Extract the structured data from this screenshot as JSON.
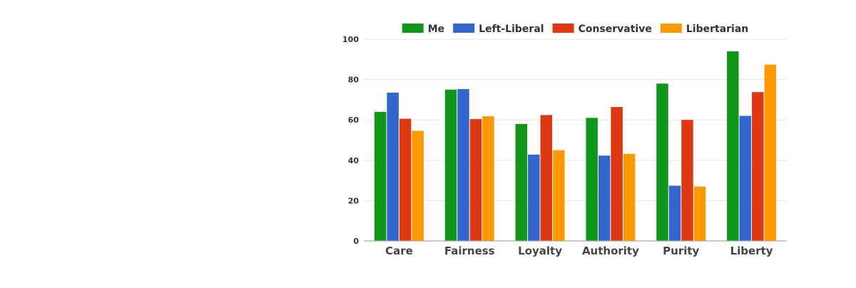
{
  "colors": {
    "me": "#109618",
    "left_liberal": "#3366cc",
    "conservative": "#dc3912",
    "libertarian": "#ff9900",
    "grid": "#e6e6e6",
    "axis": "#aaaaaa"
  },
  "chart_data": {
    "type": "bar",
    "categories": [
      "Care",
      "Fairness",
      "Loyalty",
      "Authority",
      "Purity",
      "Liberty"
    ],
    "series": [
      {
        "name": "Me",
        "color": "#109618",
        "values": [
          64,
          75,
          58,
          61,
          78,
          94
        ]
      },
      {
        "name": "Left-Liberal",
        "color": "#3366cc",
        "values": [
          73.5,
          75.3,
          42.8,
          42.3,
          27.4,
          62
        ]
      },
      {
        "name": "Conservative",
        "color": "#dc3912",
        "values": [
          60.6,
          60.4,
          62.4,
          66.4,
          60,
          73.8
        ]
      },
      {
        "name": "Libertarian",
        "color": "#ff9900",
        "values": [
          54.6,
          61.8,
          45,
          43.2,
          27,
          87.4
        ]
      }
    ],
    "title": "",
    "xlabel": "",
    "ylabel": "",
    "ylim": [
      0,
      100
    ],
    "yticks": [
      0,
      20,
      40,
      60,
      80,
      100
    ],
    "grid": true,
    "legend_position": "top"
  }
}
